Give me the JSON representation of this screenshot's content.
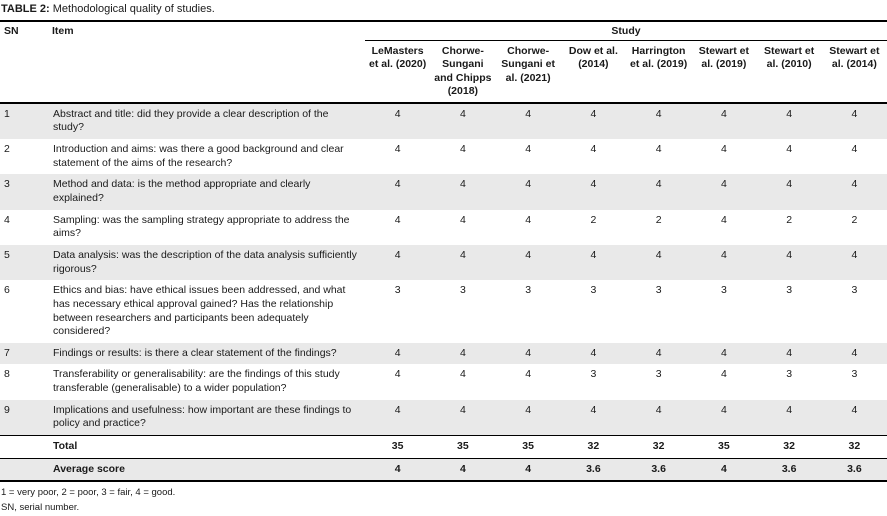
{
  "title": {
    "label": "TABLE 2:",
    "text": "Methodological quality of studies."
  },
  "colors": {
    "row_shade": "#e9e9e9",
    "rule": "#000000"
  },
  "table": {
    "sn_header": "SN",
    "item_header": "Item",
    "study_header": "Study",
    "study_columns": [
      "LeMasters et al. (2020)",
      "Chorwe-Sungani and Chipps (2018)",
      "Chorwe-Sungani et al. (2021)",
      "Dow et al. (2014)",
      "Harrington et al. (2019)",
      "Stewart et al. (2019)",
      "Stewart et al. (2010)",
      "Stewart et al. (2014)"
    ],
    "rows": [
      {
        "sn": "1",
        "item": "Abstract and title: did they provide a clear description of the study?",
        "scores": [
          "4",
          "4",
          "4",
          "4",
          "4",
          "4",
          "4",
          "4"
        ]
      },
      {
        "sn": "2",
        "item": "Introduction and aims: was there a good background and clear statement of the aims of the research?",
        "scores": [
          "4",
          "4",
          "4",
          "4",
          "4",
          "4",
          "4",
          "4"
        ]
      },
      {
        "sn": "3",
        "item": "Method and data: is the method appropriate and clearly explained?",
        "scores": [
          "4",
          "4",
          "4",
          "4",
          "4",
          "4",
          "4",
          "4"
        ]
      },
      {
        "sn": "4",
        "item": "Sampling: was the sampling strategy appropriate to address the aims?",
        "scores": [
          "4",
          "4",
          "4",
          "2",
          "2",
          "4",
          "2",
          "2"
        ]
      },
      {
        "sn": "5",
        "item": "Data analysis: was the description of the data analysis sufficiently rigorous?",
        "scores": [
          "4",
          "4",
          "4",
          "4",
          "4",
          "4",
          "4",
          "4"
        ]
      },
      {
        "sn": "6",
        "item": "Ethics and bias: have ethical issues been addressed, and what has necessary ethical approval gained? Has the relationship between researchers and participants been adequately considered?",
        "scores": [
          "3",
          "3",
          "3",
          "3",
          "3",
          "3",
          "3",
          "3"
        ]
      },
      {
        "sn": "7",
        "item": "Findings or results: is there a clear statement of the findings?",
        "scores": [
          "4",
          "4",
          "4",
          "4",
          "4",
          "4",
          "4",
          "4"
        ]
      },
      {
        "sn": "8",
        "item": "Transferability or generalisability: are the findings of this study transferable (generalisable) to a wider population?",
        "scores": [
          "4",
          "4",
          "4",
          "3",
          "3",
          "4",
          "3",
          "3"
        ]
      },
      {
        "sn": "9",
        "item": "Implications and usefulness: how important are these findings to policy and practice?",
        "scores": [
          "4",
          "4",
          "4",
          "4",
          "4",
          "4",
          "4",
          "4"
        ]
      }
    ],
    "total": {
      "label": "Total",
      "values": [
        "35",
        "35",
        "35",
        "32",
        "32",
        "35",
        "32",
        "32"
      ]
    },
    "average": {
      "label": "Average score",
      "values": [
        "4",
        "4",
        "4",
        "3.6",
        "3.6",
        "4",
        "3.6",
        "3.6"
      ]
    }
  },
  "footnotes": [
    "1 = very poor, 2 = poor, 3 = fair, 4 = good.",
    "SN, serial number."
  ]
}
